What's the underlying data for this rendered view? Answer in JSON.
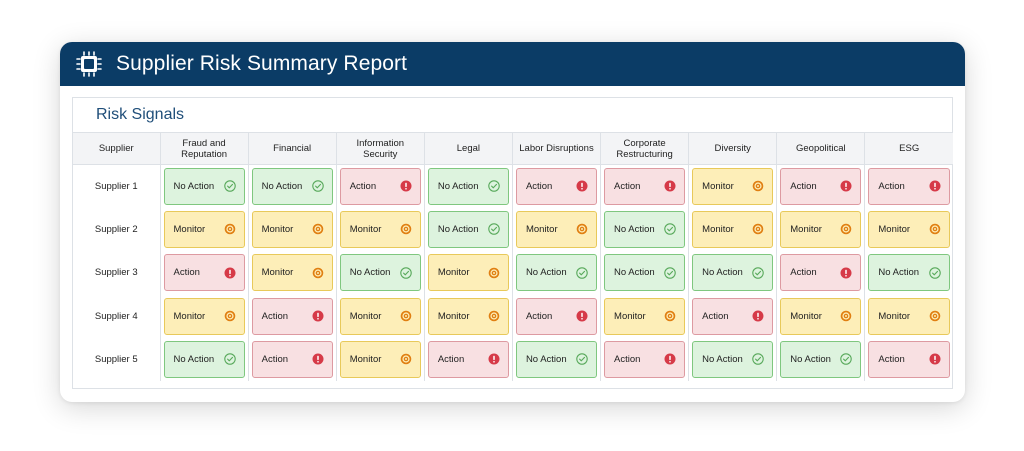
{
  "header": {
    "title": "Supplier Risk Summary Report"
  },
  "section": {
    "title": "Risk Signals"
  },
  "columns": [
    "Supplier",
    "Fraud and Reputation",
    "Financial",
    "Information Security",
    "Legal",
    "Labor Disruptions",
    "Corporate Restructuring",
    "Diversity",
    "Geopolitical",
    "ESG"
  ],
  "statuses": {
    "noaction": {
      "label": "No Action",
      "icon": "check-circle-icon"
    },
    "monitor": {
      "label": "Monitor",
      "icon": "target-icon"
    },
    "action": {
      "label": "Action",
      "icon": "exclamation-circle-icon"
    }
  },
  "colors": {
    "header_bg": "#0b3c66",
    "noaction_bg": "#ddf3de",
    "noaction_icon": "#58a95b",
    "monitor_bg": "#fdeeb8",
    "monitor_icon": "#e07f12",
    "action_bg": "#f8e0e2",
    "action_icon": "#d63a48"
  },
  "rows": [
    {
      "supplier": "Supplier 1",
      "cells": [
        "noaction",
        "noaction",
        "action",
        "noaction",
        "action",
        "action",
        "monitor",
        "action",
        "action"
      ]
    },
    {
      "supplier": "Supplier 2",
      "cells": [
        "monitor",
        "monitor",
        "monitor",
        "noaction",
        "monitor",
        "noaction",
        "monitor",
        "monitor",
        "monitor"
      ]
    },
    {
      "supplier": "Supplier 3",
      "cells": [
        "action",
        "monitor",
        "noaction",
        "monitor",
        "noaction",
        "noaction",
        "noaction",
        "action",
        "noaction"
      ]
    },
    {
      "supplier": "Supplier 4",
      "cells": [
        "monitor",
        "action",
        "monitor",
        "monitor",
        "action",
        "monitor",
        "action",
        "monitor",
        "monitor"
      ]
    },
    {
      "supplier": "Supplier 5",
      "cells": [
        "noaction",
        "action",
        "monitor",
        "action",
        "noaction",
        "action",
        "noaction",
        "noaction",
        "action"
      ]
    }
  ]
}
